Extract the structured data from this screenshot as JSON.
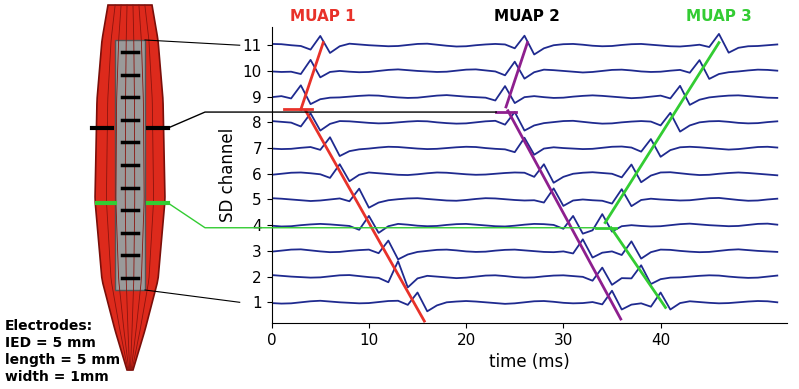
{
  "chart_data": {
    "type": "line",
    "x_label": "time (ms)",
    "y_label": "SD channel",
    "xlim": [
      0,
      53
    ],
    "xticks": [
      0,
      10,
      20,
      30,
      40
    ],
    "ylim": [
      0.2,
      11.7
    ],
    "yticks": [
      1,
      2,
      3,
      4,
      5,
      6,
      7,
      8,
      9,
      10,
      11
    ],
    "color": "#1f2a8f",
    "x": [
      0,
      1,
      2,
      3,
      4,
      5,
      6,
      7,
      8,
      9,
      10,
      11,
      12,
      13,
      14,
      15,
      16,
      17,
      18,
      19,
      20,
      21,
      22,
      23,
      24,
      25,
      26,
      27,
      28,
      29,
      30,
      31,
      32,
      33,
      34,
      35,
      36,
      37,
      38,
      39,
      40,
      41,
      42,
      43,
      44,
      45,
      46,
      47,
      48,
      49,
      50,
      51,
      52
    ],
    "series": [
      {
        "values": [
          0.97,
          0.95,
          0.96,
          1.0,
          1.04,
          1.06,
          1.03,
          1.0,
          0.98,
          0.96,
          0.97,
          1.01,
          1.05,
          1.06,
          0.9,
          1.38,
          0.65,
          0.88,
          1.0,
          1.03,
          1.05,
          1.03,
          1.0,
          0.97,
          0.94,
          0.96,
          1.0,
          1.04,
          1.05,
          1.02,
          0.98,
          0.96,
          0.97,
          1.01,
          0.92,
          1.45,
          0.72,
          0.91,
          0.96,
          0.83,
          1.38,
          0.72,
          0.97,
          1.04,
          1.01,
          0.98,
          0.96,
          0.97,
          1.0,
          1.03,
          1.05,
          1.04,
          1.0
        ]
      },
      {
        "values": [
          2.06,
          2.03,
          2.0,
          1.98,
          1.96,
          1.97,
          2.01,
          2.05,
          2.06,
          2.02,
          1.98,
          1.95,
          1.78,
          2.6,
          1.58,
          1.93,
          2.03,
          2.0,
          1.97,
          1.94,
          1.96,
          2.0,
          2.04,
          2.05,
          2.02,
          1.98,
          1.96,
          1.97,
          2.01,
          2.04,
          2.05,
          2.02,
          1.99,
          1.84,
          2.35,
          1.68,
          1.94,
          1.93,
          2.44,
          1.71,
          1.9,
          1.96,
          1.97,
          2.0,
          2.03,
          2.05,
          2.04,
          2.0,
          1.97,
          1.95,
          1.96,
          2.0,
          2.04
        ]
      },
      {
        "values": [
          2.97,
          3.01,
          3.05,
          3.06,
          3.02,
          2.98,
          2.95,
          2.96,
          3.0,
          3.03,
          3.05,
          2.91,
          3.4,
          2.67,
          2.86,
          2.96,
          3.0,
          3.04,
          3.05,
          3.02,
          2.98,
          2.96,
          2.97,
          3.01,
          3.04,
          3.05,
          3.02,
          2.99,
          2.96,
          2.95,
          2.98,
          2.9,
          3.45,
          2.74,
          2.93,
          2.98,
          2.84,
          3.37,
          2.7,
          2.95,
          3.05,
          3.04,
          3.0,
          2.97,
          2.95,
          2.96,
          3.0,
          3.04,
          3.06,
          3.03,
          3.0,
          2.98,
          2.96
        ]
      },
      {
        "values": [
          3.98,
          3.95,
          3.96,
          4.0,
          4.03,
          4.05,
          4.03,
          4.0,
          3.97,
          3.82,
          4.36,
          3.7,
          3.96,
          4.05,
          4.02,
          3.98,
          3.96,
          3.97,
          4.01,
          4.04,
          4.05,
          4.02,
          3.99,
          3.96,
          3.95,
          3.98,
          4.02,
          4.05,
          4.04,
          4.01,
          3.86,
          4.36,
          3.67,
          3.8,
          4.43,
          3.75,
          3.96,
          4.0,
          3.97,
          3.95,
          3.96,
          4.0,
          4.04,
          4.06,
          4.03,
          4.0,
          3.98,
          3.96,
          3.97,
          4.01,
          4.05,
          4.06,
          4.02
        ]
      },
      {
        "values": [
          5.05,
          5.03,
          5.0,
          4.97,
          4.94,
          4.96,
          5.0,
          5.04,
          4.93,
          5.42,
          4.68,
          4.88,
          4.97,
          5.01,
          5.04,
          5.05,
          5.02,
          4.99,
          4.96,
          4.95,
          4.98,
          5.02,
          5.05,
          5.04,
          5.01,
          4.98,
          4.96,
          4.97,
          4.88,
          5.43,
          4.75,
          4.96,
          5.0,
          4.97,
          4.95,
          4.84,
          5.4,
          4.74,
          4.98,
          5.03,
          5.0,
          4.98,
          4.96,
          4.97,
          5.01,
          5.05,
          5.06,
          5.02,
          4.98,
          4.95,
          4.96,
          5.0,
          5.03
        ]
      },
      {
        "values": [
          5.96,
          6.0,
          6.04,
          6.05,
          6.02,
          5.98,
          5.84,
          6.37,
          5.71,
          5.96,
          6.05,
          6.02,
          5.99,
          5.96,
          5.95,
          5.98,
          6.02,
          6.05,
          6.04,
          6.01,
          5.98,
          5.96,
          5.97,
          6.0,
          6.03,
          6.05,
          6.04,
          5.88,
          6.37,
          5.65,
          5.88,
          6.0,
          6.04,
          6.06,
          6.03,
          6.0,
          5.86,
          6.36,
          5.67,
          5.93,
          6.05,
          6.06,
          6.02,
          5.98,
          5.95,
          5.96,
          6.0,
          6.03,
          6.05,
          6.03,
          6.0,
          5.97,
          5.94
        ]
      },
      {
        "values": [
          6.98,
          6.96,
          6.97,
          7.01,
          7.04,
          6.93,
          7.42,
          6.69,
          6.88,
          6.95,
          6.98,
          7.02,
          7.05,
          7.04,
          7.01,
          6.98,
          6.96,
          6.97,
          7.0,
          7.03,
          7.05,
          7.04,
          7.0,
          6.97,
          6.95,
          6.84,
          7.4,
          6.74,
          6.98,
          7.03,
          7.0,
          6.98,
          6.96,
          6.97,
          7.01,
          7.05,
          7.06,
          7.02,
          6.86,
          7.35,
          6.66,
          6.92,
          7.03,
          7.05,
          7.03,
          7.0,
          6.97,
          6.94,
          6.96,
          7.0,
          7.04,
          7.05,
          7.02
        ]
      },
      {
        "values": [
          8.05,
          8.02,
          7.99,
          7.84,
          8.35,
          7.68,
          7.94,
          8.05,
          8.04,
          8.01,
          7.98,
          7.96,
          7.97,
          8.0,
          8.03,
          8.05,
          8.04,
          8.0,
          7.97,
          7.95,
          7.96,
          8.0,
          8.04,
          8.06,
          7.91,
          8.4,
          7.68,
          7.88,
          7.97,
          8.01,
          8.05,
          8.06,
          8.02,
          7.98,
          7.95,
          7.96,
          8.0,
          8.03,
          8.05,
          8.03,
          7.88,
          8.37,
          7.64,
          7.88,
          8.0,
          8.04,
          8.05,
          8.02,
          7.98,
          7.96,
          7.97,
          8.01,
          8.04
        ]
      },
      {
        "values": [
          8.98,
          9.02,
          8.93,
          9.44,
          8.71,
          8.9,
          8.96,
          8.97,
          9.0,
          9.03,
          9.05,
          9.04,
          9.0,
          8.97,
          8.95,
          8.96,
          9.0,
          9.04,
          9.06,
          9.03,
          9.0,
          8.98,
          8.96,
          8.85,
          9.41,
          8.75,
          8.98,
          9.02,
          8.98,
          8.95,
          8.96,
          9.0,
          9.03,
          9.05,
          9.03,
          9.0,
          8.97,
          8.94,
          8.96,
          9.0,
          9.04,
          8.93,
          9.42,
          8.68,
          8.88,
          8.97,
          9.01,
          9.04,
          9.05,
          9.02,
          8.99,
          8.96,
          8.95
        ]
      },
      {
        "values": [
          9.98,
          9.96,
          9.97,
          9.88,
          10.43,
          9.75,
          9.96,
          10.0,
          9.97,
          9.95,
          9.96,
          10.0,
          10.04,
          10.06,
          10.03,
          10.0,
          9.98,
          9.96,
          9.97,
          10.01,
          10.05,
          10.06,
          10.02,
          9.98,
          9.83,
          10.36,
          9.7,
          9.95,
          10.05,
          10.03,
          10.0,
          9.97,
          9.94,
          9.96,
          10.0,
          10.04,
          10.05,
          10.02,
          9.98,
          9.96,
          9.97,
          10.01,
          10.04,
          9.93,
          10.42,
          9.69,
          9.88,
          9.95,
          9.98,
          10.02,
          10.05,
          10.04,
          10.01
        ]
      },
      {
        "values": [
          11.05,
          11.04,
          11.0,
          10.97,
          10.83,
          11.36,
          10.7,
          10.96,
          11.06,
          11.03,
          11.0,
          10.98,
          10.96,
          10.97,
          11.01,
          11.05,
          11.06,
          11.02,
          10.98,
          10.95,
          10.96,
          11.0,
          11.03,
          11.05,
          11.03,
          10.88,
          11.37,
          10.64,
          10.88,
          11.0,
          11.04,
          11.05,
          11.02,
          10.98,
          10.96,
          10.97,
          11.01,
          11.04,
          11.05,
          11.02,
          10.99,
          10.96,
          10.95,
          10.98,
          11.02,
          10.93,
          11.44,
          10.71,
          10.9,
          10.96,
          10.97,
          11.0,
          11.03
        ]
      }
    ],
    "annotations": [
      {
        "text": "MUAP 1",
        "color": "#e8322a"
      },
      {
        "text": "MUAP 2",
        "color": "#000000"
      },
      {
        "text": "MUAP 3",
        "color": "#33cc33"
      }
    ],
    "muap_lines": [
      {
        "color": "#e8322a",
        "segments": [
          [
            [
              5.3,
              11.1
            ],
            [
              3.0,
              8.5
            ]
          ],
          [
            [
              1.3,
              8.5
            ],
            [
              4.1,
              8.5
            ]
          ],
          [
            [
              3.5,
              8.45
            ],
            [
              15.7,
              0.27
            ]
          ]
        ]
      },
      {
        "color": "#8e1f8e",
        "segments": [
          [
            [
              26.3,
              11.1
            ],
            [
              24.1,
              8.6
            ]
          ],
          [
            [
              23.1,
              8.4
            ],
            [
              25.1,
              8.4
            ]
          ],
          [
            [
              24.3,
              8.45
            ],
            [
              35.9,
              0.35
            ]
          ]
        ]
      },
      {
        "color": "#33cc33",
        "segments": [
          [
            [
              46.0,
              11.1
            ],
            [
              34.3,
              4.1
            ]
          ],
          [
            [
              33.4,
              3.9
            ],
            [
              35.4,
              3.9
            ]
          ],
          [
            [
              34.9,
              3.9
            ],
            [
              40.5,
              0.8
            ]
          ]
        ]
      }
    ]
  },
  "diagram": {
    "texts": [
      "Electrodes:",
      "IED = 5 mm",
      "length = 5 mm",
      "width = 1mm"
    ]
  }
}
